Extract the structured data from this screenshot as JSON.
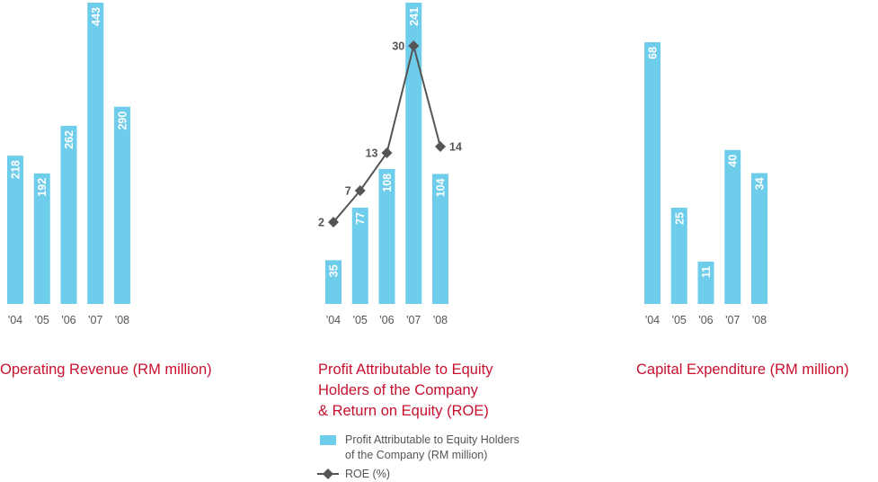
{
  "colors": {
    "bar": "#6dcdea",
    "bar_label": "#ffffff",
    "tick": "#555555",
    "title": "#c8102e",
    "line": "#555555",
    "marker": "#555555"
  },
  "chart_data": [
    {
      "type": "bar",
      "title": "Operating Revenue (RM million)",
      "categories": [
        "'04",
        "'05",
        "'06",
        "'07",
        "'08"
      ],
      "values": [
        218,
        192,
        262,
        443,
        290
      ],
      "data_labels": [
        "218",
        "192",
        "262",
        "443",
        "290"
      ],
      "xlabel": "",
      "ylabel": "",
      "grid": false
    },
    {
      "type": "bar",
      "title": "Profit Attributable to Equity Holders of the Company & Return on Equity (ROE)",
      "title_lines": [
        "Profit Attributable to Equity",
        "Holders of the Company",
        "& Return on Equity (ROE)"
      ],
      "categories": [
        "'04",
        "'05",
        "'06",
        "'07",
        "'08"
      ],
      "series": [
        {
          "name": "Profit Attributable to Equity Holders of the Company (RM million)",
          "type": "bar",
          "values": [
            35,
            77,
            108,
            241,
            104
          ],
          "data_labels": [
            "35",
            "77",
            "108",
            "241",
            "104"
          ]
        },
        {
          "name": "ROE (%)",
          "type": "line",
          "values": [
            2,
            7,
            13,
            30,
            14
          ],
          "data_labels": [
            "2",
            "7",
            "13",
            "30",
            "14"
          ]
        }
      ],
      "legend": {
        "position": "bottom",
        "bar_label_lines": [
          "Profit Attributable to Equity Holders",
          "of the Company (RM million)"
        ],
        "line_label": "ROE (%)"
      },
      "xlabel": "",
      "ylabel": "",
      "grid": false
    },
    {
      "type": "bar",
      "title": "Capital Expenditure (RM million)",
      "categories": [
        "'04",
        "'05",
        "'06",
        "'07",
        "'08"
      ],
      "values": [
        68,
        25,
        11,
        40,
        34
      ],
      "data_labels": [
        "68",
        "25",
        "11",
        "40",
        "34"
      ],
      "xlabel": "",
      "ylabel": "",
      "grid": false
    }
  ]
}
